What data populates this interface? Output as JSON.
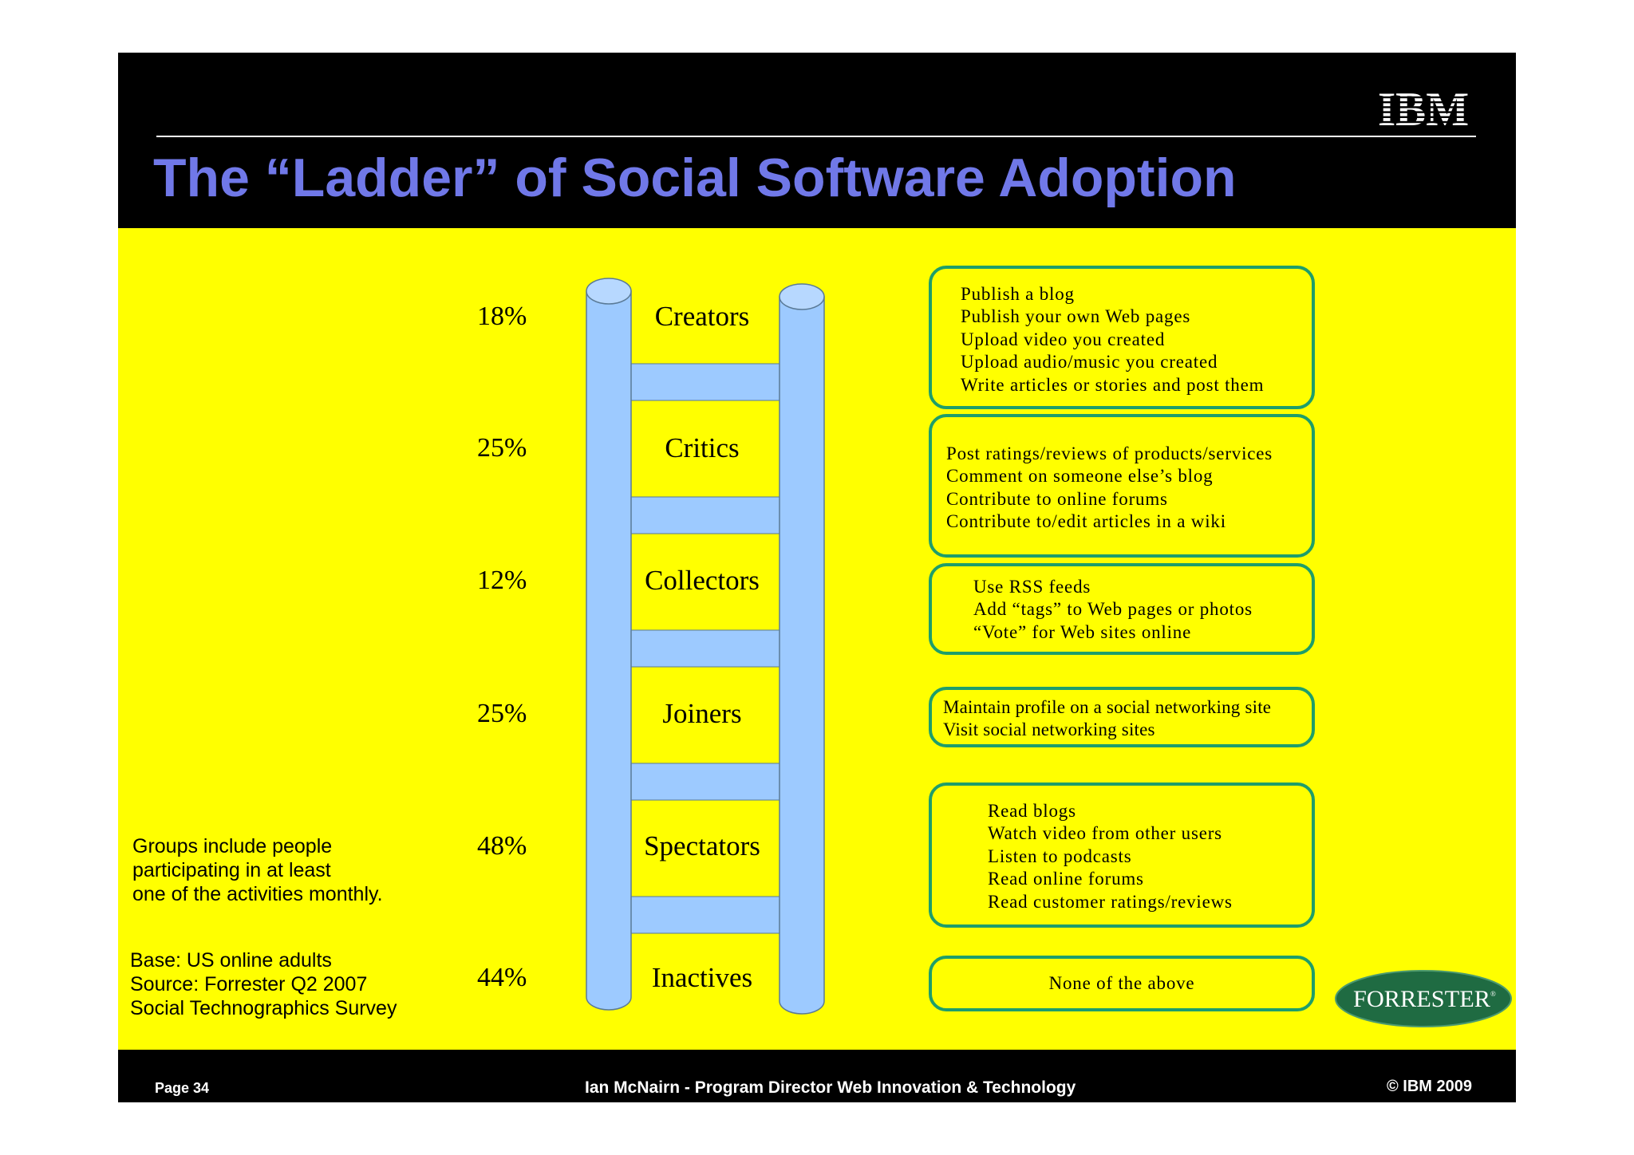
{
  "slide": {
    "title": "The “Ladder” of Social Software Adoption",
    "logo_text": "IBM",
    "colors": {
      "header": "#000000",
      "body": "#ffff00",
      "title": "#7078e8",
      "ladder": "#9dcaff",
      "box_border": "#1e9e6a",
      "forrester": "#1f6b42"
    }
  },
  "ladder": [
    {
      "percent": "18%",
      "label": "Creators",
      "activities": [
        "Publish a blog",
        "Publish your own Web pages",
        "Upload video you created",
        "Upload audio/music you created",
        "Write articles or stories and post them"
      ]
    },
    {
      "percent": "25%",
      "label": "Critics",
      "activities": [
        "Post ratings/reviews of products/services",
        "Comment on someone else’s blog",
        "Contribute to online forums",
        "Contribute to/edit articles in a wiki"
      ]
    },
    {
      "percent": "12%",
      "label": "Collectors",
      "activities": [
        "Use RSS  feeds",
        "Add “tags” to Web pages or photos",
        "“Vote” for Web sites online"
      ]
    },
    {
      "percent": "25%",
      "label": "Joiners",
      "activities": [
        "Maintain profile on a social networking site",
        "Visit social networking sites"
      ]
    },
    {
      "percent": "48%",
      "label": "Spectators",
      "activities": [
        "Read blogs",
        "Watch video from other users",
        "Listen to podcasts",
        "Read online forums",
        "Read customer ratings/reviews"
      ]
    },
    {
      "percent": "44%",
      "label": "Inactives",
      "activities": [
        "None of the above"
      ]
    }
  ],
  "notes": {
    "groups": [
      "Groups include people",
      "participating in at least",
      "one of the activities monthly."
    ],
    "base_source": [
      "Base: US online adults",
      "Source: Forrester Q2 2007",
      "Social Technographics Survey"
    ]
  },
  "forrester_logo": "FORRESTER",
  "footer": {
    "page": "Page 34",
    "presenter": "Ian McNairn - Program Director Web Innovation & Technology",
    "copyright": "© IBM 2009"
  }
}
